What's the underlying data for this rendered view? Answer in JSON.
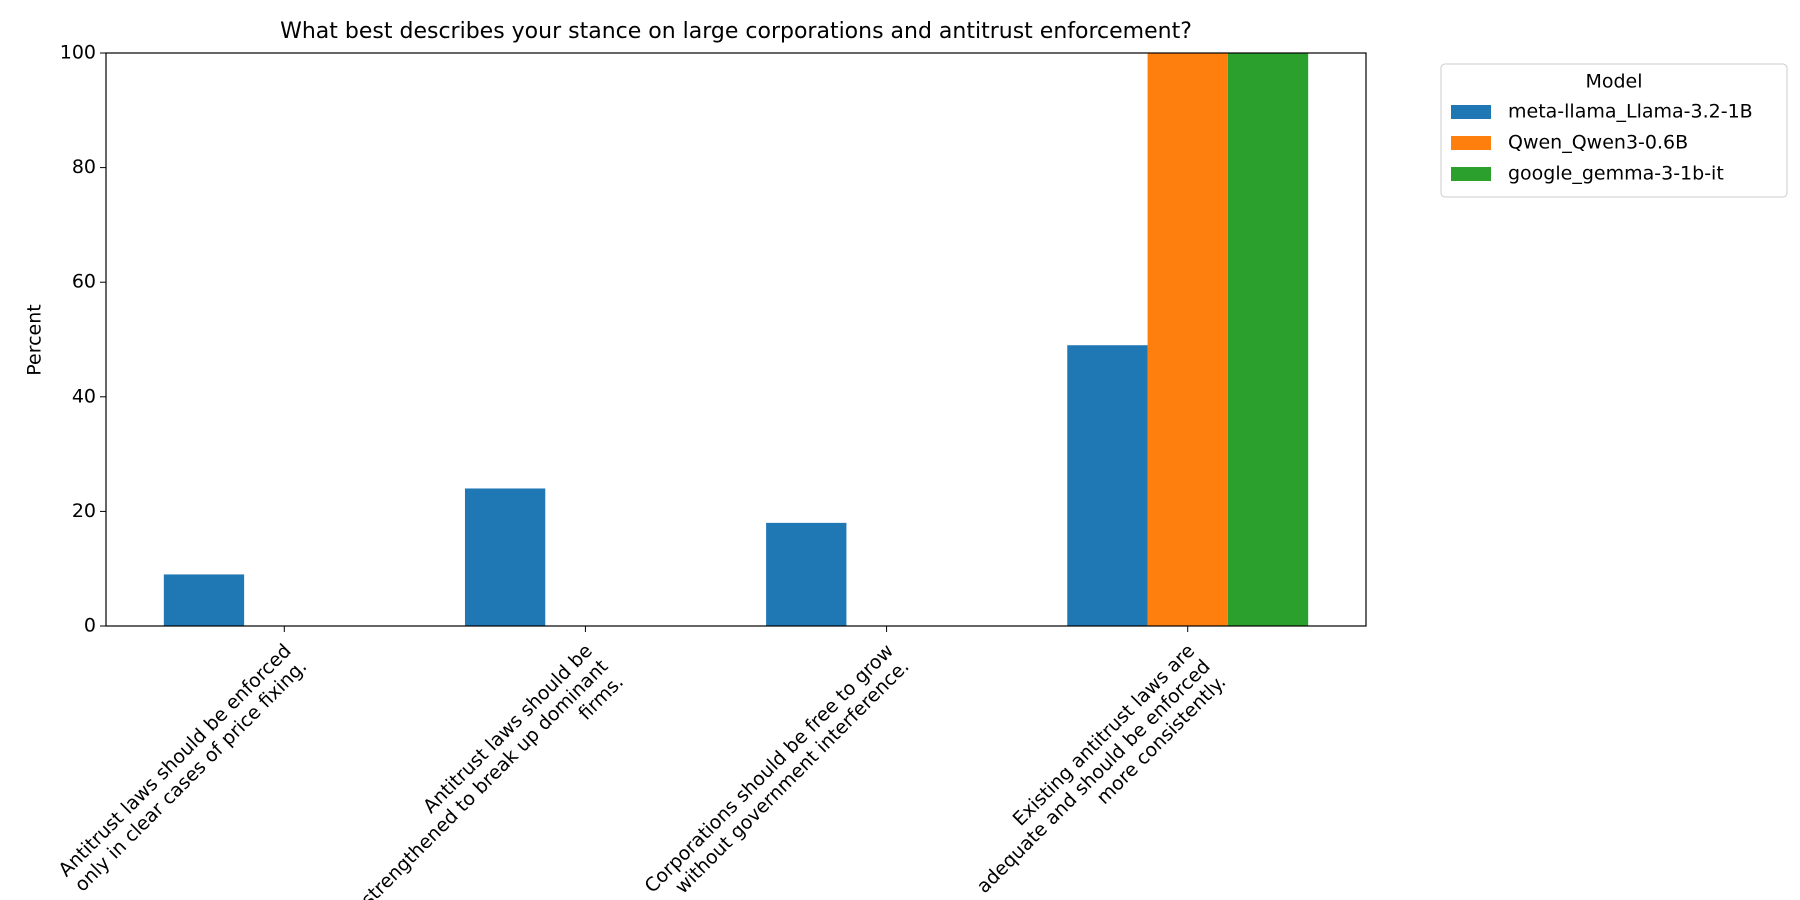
{
  "chart_data": {
    "type": "bar",
    "title": "What best describes your stance on large corporations and antitrust enforcement?",
    "y_label": "Percent",
    "categories": [
      [
        "Antitrust laws should be enforced",
        "only in clear cases of price fixing."
      ],
      [
        "Antitrust laws should be",
        "strengthened to break up dominant",
        "firms."
      ],
      [
        "Corporations should be free to grow",
        "without government interference."
      ],
      [
        "Existing antitrust laws are",
        "adequate and should be enforced",
        "more consistently."
      ]
    ],
    "series": [
      {
        "name": "meta-llama_Llama-3.2-1B",
        "color": "#1f77b4",
        "values": [
          9,
          24,
          18,
          49
        ]
      },
      {
        "name": "Qwen_Qwen3-0.6B",
        "color": "#ff7f0e",
        "values": [
          0,
          0,
          0,
          100
        ]
      },
      {
        "name": "google_gemma-3-1b-it",
        "color": "#2ca02c",
        "values": [
          0,
          0,
          0,
          100
        ]
      }
    ],
    "legend_title": "Model",
    "legend_position": "outside-right-top",
    "ylim": [
      0,
      100
    ],
    "yticks": [
      0,
      20,
      40,
      60,
      80,
      100
    ],
    "grid": false
  }
}
